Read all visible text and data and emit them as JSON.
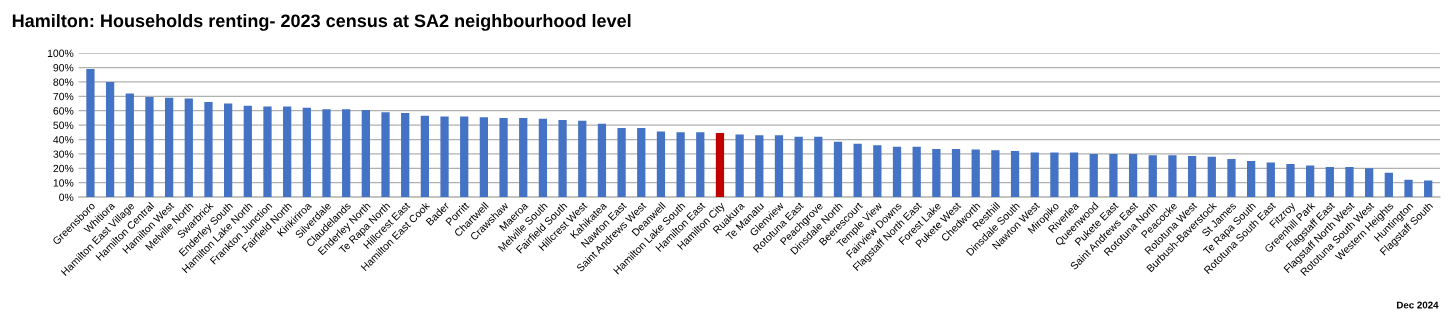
{
  "chart_data": {
    "type": "bar",
    "title": "Hamilton: Households renting- 2023 census at SA2 neighbourhood level",
    "categories": [
      "Greensboro",
      "Whitiora",
      "Hamilton East Village",
      "Hamilton Central",
      "Hamilton West",
      "Melville North",
      "Swarbrick",
      "Enderley South",
      "Hamilton Lake North",
      "Frankton Junction",
      "Fairfield North",
      "Kirikiriroa",
      "Silverdale",
      "Claudelands",
      "Enderley North",
      "Te Rapa North",
      "Hillcrest East",
      "Hamilton East Cook",
      "Bader",
      "Porritt",
      "Chartwell",
      "Crawshaw",
      "Maeroa",
      "Melville South",
      "Fairfield South",
      "Hillcrest West",
      "Kahikatea",
      "Nawton East",
      "Saint Andrews West",
      "Deanwell",
      "Hamilton Lake South",
      "Hamilton East",
      "Hamilton City",
      "Ruakura",
      "Te Manatu",
      "Glenview",
      "Rototuna East",
      "Peachgrove",
      "Dinsdale North",
      "Beerescourt",
      "Temple View",
      "Fairview Downs",
      "Flagstaff North East",
      "Forest Lake",
      "Pukete West",
      "Chedworth",
      "Resthill",
      "Dinsdale South",
      "Nawton West",
      "Miropiko",
      "Riverlea",
      "Queenwood",
      "Pukete East",
      "Saint Andrews East",
      "Rototuna North",
      "Peacocke",
      "Rototuna West",
      "Burbush-Baverstock",
      "St James",
      "Te Rapa South",
      "Rototuna South East",
      "Fitzroy",
      "Greenhill Park",
      "Flagstaff East",
      "Flagstaff North West",
      "Rototuna South West",
      "Western Heights",
      "Huntington",
      "Flagstaff South"
    ],
    "values": [
      89,
      80,
      72,
      69.5,
      69,
      68.5,
      66,
      65,
      63.5,
      63,
      63,
      62,
      61,
      61,
      60.5,
      59,
      58.5,
      56.5,
      56,
      56,
      55.5,
      55,
      55,
      54.5,
      53.5,
      53,
      51,
      48,
      48,
      45.5,
      45,
      45,
      44.5,
      43.5,
      43,
      43,
      42,
      42,
      38.5,
      37,
      36,
      35,
      35,
      33.5,
      33.5,
      33,
      32.5,
      32,
      31,
      31,
      31,
      30,
      30,
      30,
      29,
      29,
      28.5,
      28,
      26.5,
      25,
      24,
      23,
      22,
      21,
      21,
      20,
      17,
      12,
      11.5
    ],
    "colors": [
      "#4472c4",
      "#4472c4",
      "#4472c4",
      "#4472c4",
      "#4472c4",
      "#4472c4",
      "#4472c4",
      "#4472c4",
      "#4472c4",
      "#4472c4",
      "#4472c4",
      "#4472c4",
      "#4472c4",
      "#4472c4",
      "#4472c4",
      "#4472c4",
      "#4472c4",
      "#4472c4",
      "#4472c4",
      "#4472c4",
      "#4472c4",
      "#4472c4",
      "#4472c4",
      "#4472c4",
      "#4472c4",
      "#4472c4",
      "#4472c4",
      "#4472c4",
      "#4472c4",
      "#4472c4",
      "#4472c4",
      "#4472c4",
      "#c00000",
      "#4472c4",
      "#4472c4",
      "#4472c4",
      "#4472c4",
      "#4472c4",
      "#4472c4",
      "#4472c4",
      "#4472c4",
      "#4472c4",
      "#4472c4",
      "#4472c4",
      "#4472c4",
      "#4472c4",
      "#4472c4",
      "#4472c4",
      "#4472c4",
      "#4472c4",
      "#4472c4",
      "#4472c4",
      "#4472c4",
      "#4472c4",
      "#4472c4",
      "#4472c4",
      "#4472c4",
      "#4472c4",
      "#4472c4",
      "#4472c4",
      "#4472c4",
      "#4472c4",
      "#4472c4",
      "#4472c4",
      "#4472c4",
      "#4472c4",
      "#4472c4",
      "#4472c4",
      "#4472c4"
    ],
    "ylim": [
      0,
      100
    ],
    "yticks": [
      {
        "value": 0,
        "label": "0%"
      },
      {
        "value": 10,
        "label": "10%"
      },
      {
        "value": 20,
        "label": "20%"
      },
      {
        "value": 30,
        "label": "30%"
      },
      {
        "value": 40,
        "label": "40%"
      },
      {
        "value": 50,
        "label": "50%"
      },
      {
        "value": 60,
        "label": "60%"
      },
      {
        "value": 70,
        "label": "70%"
      },
      {
        "value": 80,
        "label": "80%"
      },
      {
        "value": 90,
        "label": "90%"
      },
      {
        "value": 100,
        "label": "100%"
      }
    ],
    "grid": "y",
    "annotations": [
      "Dec 2024"
    ]
  }
}
